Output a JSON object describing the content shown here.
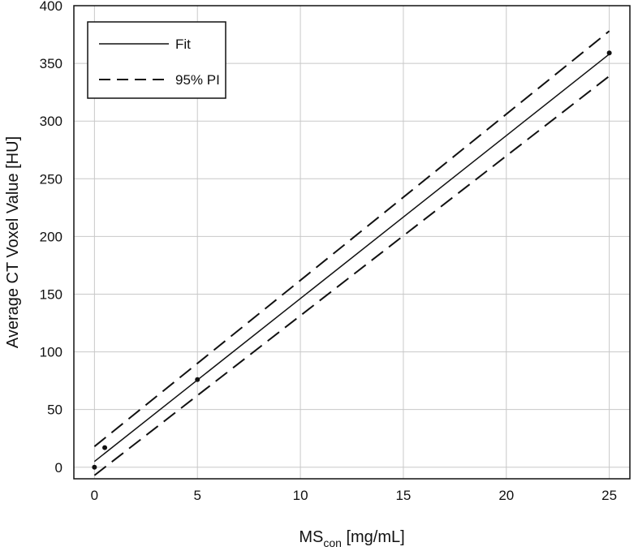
{
  "chart_data": {
    "type": "line",
    "title": "",
    "xlabel": {
      "main": "MS",
      "sub": "con",
      "unit": " [mg/mL]"
    },
    "ylabel": "Average CT Voxel Value [HU]",
    "xlim": [
      -1,
      26
    ],
    "ylim": [
      -10,
      400
    ],
    "xticks": [
      0,
      5,
      10,
      15,
      20,
      25
    ],
    "yticks": [
      0,
      50,
      100,
      150,
      200,
      250,
      300,
      350,
      400
    ],
    "grid": true,
    "legend_position": "top-left",
    "series": [
      {
        "name": "Fit",
        "style": "solid",
        "x": [
          0,
          25
        ],
        "y": [
          5,
          358
        ]
      },
      {
        "name": "95% PI",
        "style": "dashed",
        "x": [
          0,
          25
        ],
        "y": [
          18,
          378
        ]
      },
      {
        "style": "dashed",
        "x": [
          0,
          25
        ],
        "y": [
          -7,
          339
        ]
      }
    ],
    "points": [
      {
        "x": 0,
        "y": 0
      },
      {
        "x": 0.5,
        "y": 17
      },
      {
        "x": 5,
        "y": 76
      },
      {
        "x": 25,
        "y": 359
      }
    ],
    "colors": {
      "line": "#111111",
      "grid": "#c8c8c8",
      "frame": "#111111"
    }
  }
}
